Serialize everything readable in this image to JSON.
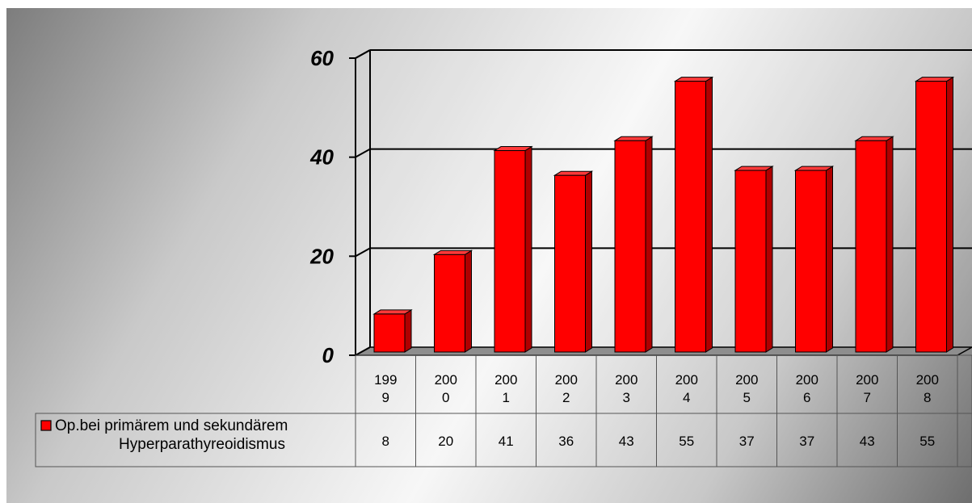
{
  "chart_data": {
    "type": "bar",
    "categories": [
      "1999",
      "2000",
      "2001",
      "2002",
      "2003",
      "2004",
      "2005",
      "2006",
      "2007",
      "2008"
    ],
    "category_display": [
      [
        "199",
        "9"
      ],
      [
        "200",
        "0"
      ],
      [
        "200",
        "1"
      ],
      [
        "200",
        "2"
      ],
      [
        "200",
        "3"
      ],
      [
        "200",
        "4"
      ],
      [
        "200",
        "5"
      ],
      [
        "200",
        "6"
      ],
      [
        "200",
        "7"
      ],
      [
        "200",
        "8"
      ]
    ],
    "series": [
      {
        "name": "Op.bei primärem und sekundärem Hyperparathyreoidismus",
        "name_lines": [
          "Op.bei primärem und sekundärem",
          "Hyperparathyreoidismus"
        ],
        "values": [
          8,
          20,
          41,
          36,
          43,
          55,
          37,
          37,
          43,
          55
        ],
        "color": "#ff0000"
      }
    ],
    "yticks": [
      "0",
      "20",
      "40",
      "60"
    ],
    "ylim": [
      0,
      60
    ],
    "grid": true,
    "style": "3d-column",
    "legend": "data-table"
  }
}
